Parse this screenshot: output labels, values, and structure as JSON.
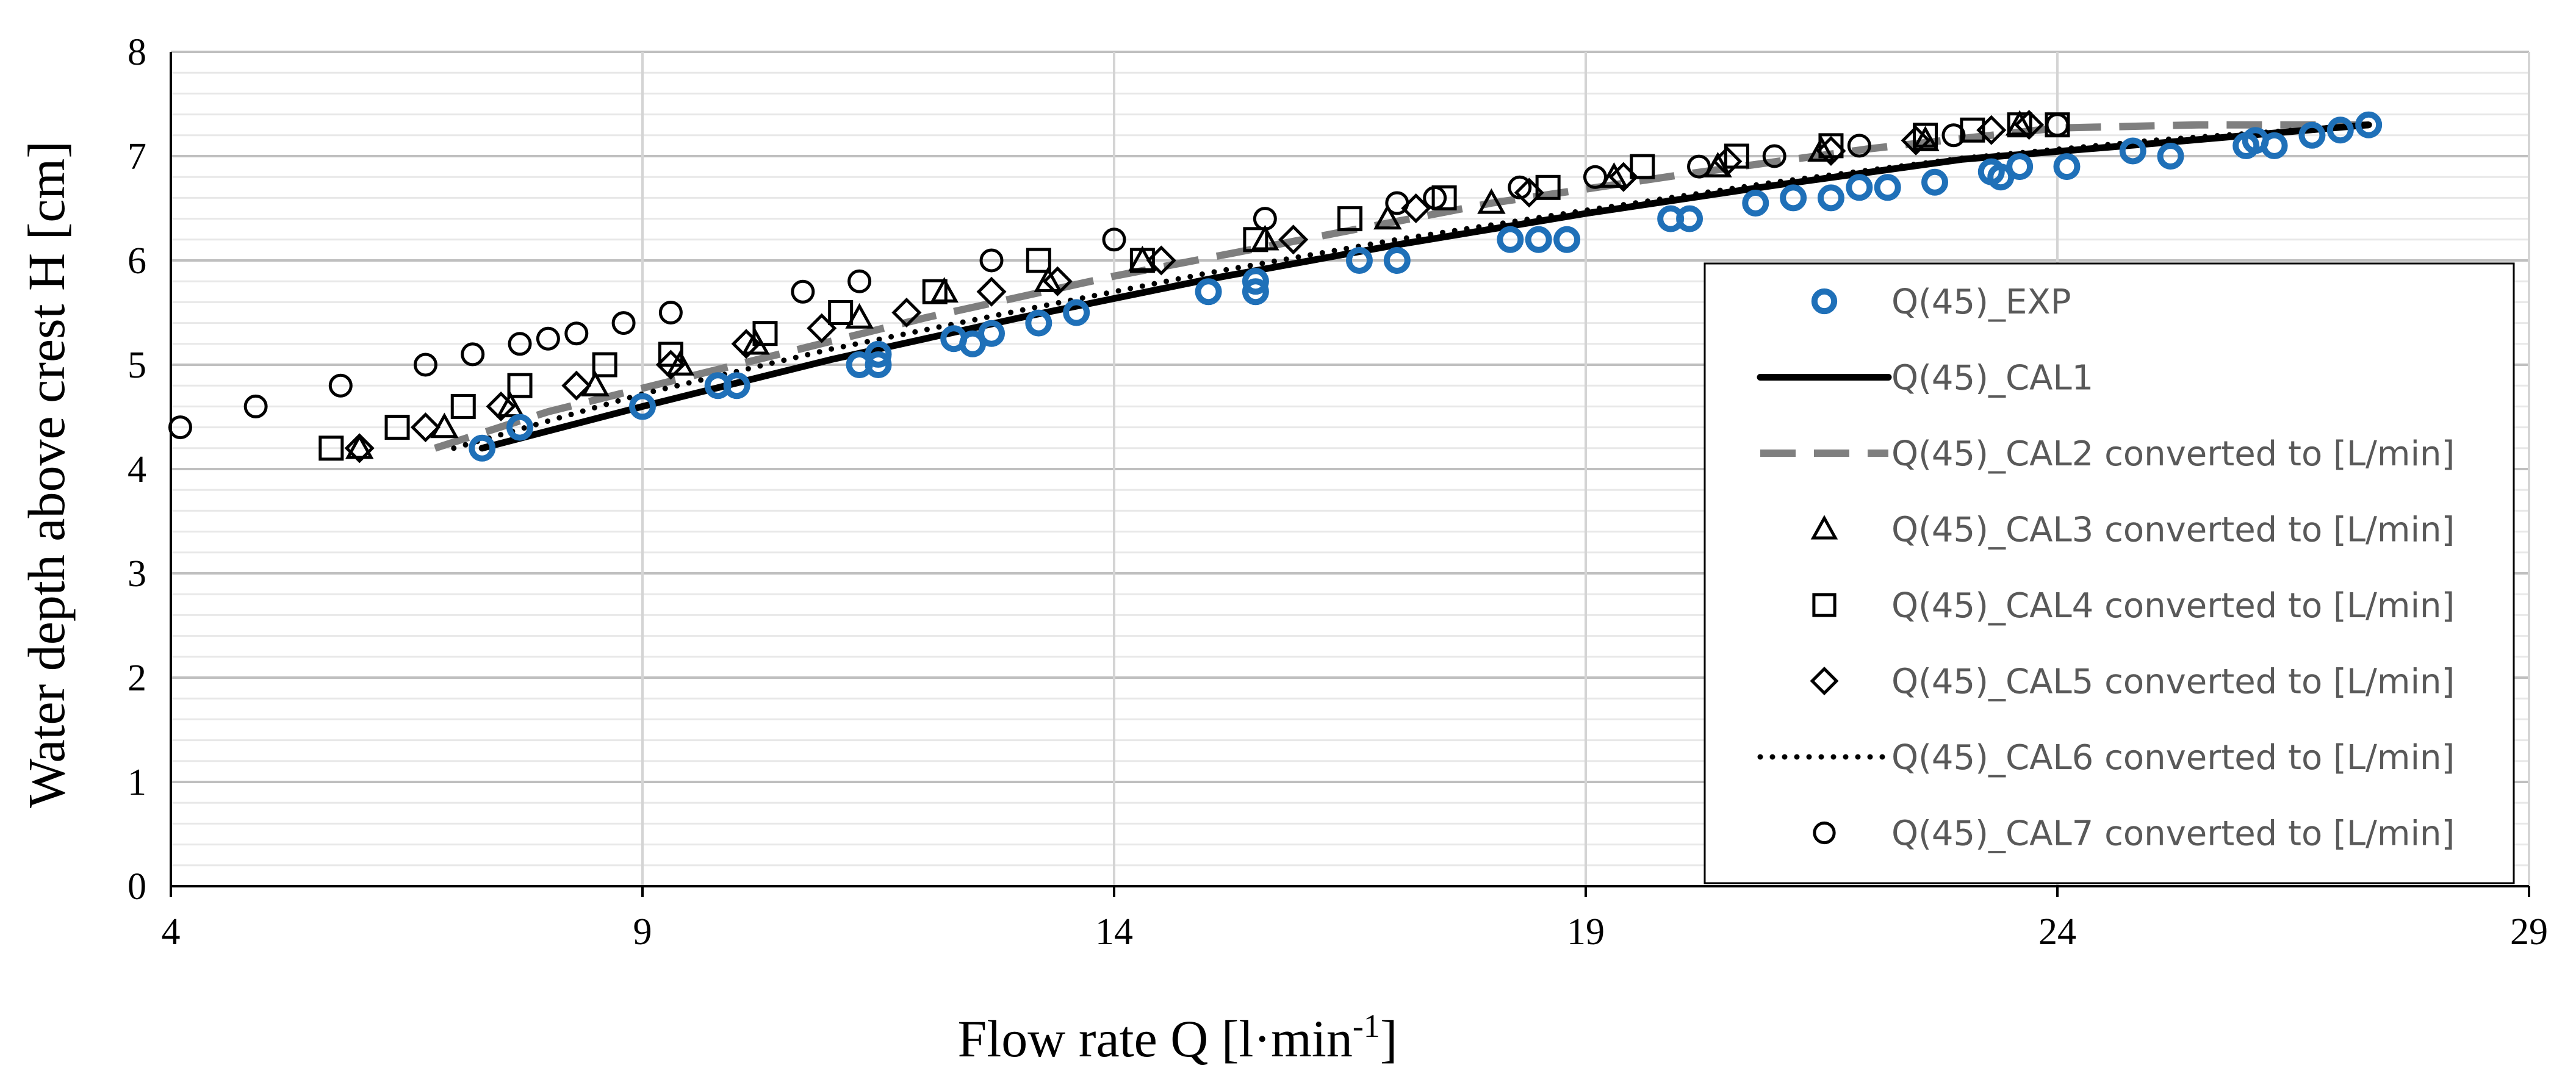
{
  "chart_data": {
    "type": "scatter",
    "xlabel": "Flow rate Q [l·min",
    "xlabel_sup": "-1",
    "xlabel_close": "]",
    "ylabel": "Water depth above crest H [cm]",
    "xlim": [
      4,
      29
    ],
    "ylim": [
      0,
      8
    ],
    "xticks": [
      "4",
      "9",
      "14",
      "19",
      "24",
      "29"
    ],
    "yticks": [
      "0",
      "1",
      "2",
      "3",
      "4",
      "5",
      "6",
      "7",
      "8"
    ],
    "grid": true,
    "legend_position": "right",
    "colors": {
      "exp": "#1f70b8",
      "black": "#000000",
      "gray": "#7f7f7f",
      "grid_major": "#bfbfbf",
      "grid_minor": "#e8e8e8"
    },
    "series": [
      {
        "name": "Q(45)_EXP",
        "style": "circle-blue",
        "x": [
          7.3,
          7.7,
          9.0,
          9.8,
          10.0,
          11.3,
          11.5,
          11.5,
          12.3,
          12.5,
          12.7,
          13.2,
          13.6,
          15.0,
          15.5,
          15.5,
          16.6,
          17.0,
          18.2,
          18.5,
          18.8,
          19.9,
          20.1,
          20.8,
          21.2,
          21.6,
          21.9,
          22.2,
          22.7,
          23.3,
          23.4,
          23.6,
          24.1,
          24.8,
          25.2,
          26.0,
          26.1,
          26.3,
          26.7,
          27.0,
          27.3
        ],
        "y": [
          4.2,
          4.4,
          4.6,
          4.8,
          4.8,
          5.0,
          5.0,
          5.1,
          5.25,
          5.2,
          5.3,
          5.4,
          5.5,
          5.7,
          5.7,
          5.8,
          6.0,
          6.0,
          6.2,
          6.2,
          6.2,
          6.4,
          6.4,
          6.55,
          6.6,
          6.6,
          6.7,
          6.7,
          6.75,
          6.85,
          6.8,
          6.9,
          6.9,
          7.05,
          7.0,
          7.1,
          7.15,
          7.1,
          7.2,
          7.25,
          7.3
        ]
      },
      {
        "name": "Q(45)_CAL1",
        "style": "solid-black",
        "x": [
          7.3,
          9.0,
          11.0,
          13.0,
          15.0,
          17.0,
          19.0,
          21.0,
          23.0,
          25.0,
          27.3
        ],
        "y": [
          4.2,
          4.6,
          5.05,
          5.45,
          5.82,
          6.15,
          6.45,
          6.72,
          6.97,
          7.12,
          7.3
        ]
      },
      {
        "name": "Q(45)_CAL2 converted to [L/min]",
        "style": "dashed-gray",
        "x": [
          6.8,
          8.0,
          10.0,
          12.0,
          14.0,
          16.0,
          18.0,
          20.0,
          22.0,
          24.0,
          25.5,
          27.3
        ],
        "y": [
          4.2,
          4.55,
          5.0,
          5.45,
          5.85,
          6.2,
          6.55,
          6.82,
          7.07,
          7.27,
          7.3,
          7.3
        ]
      },
      {
        "name": "Q(45)_CAL3 converted to [L/min]",
        "style": "triangle-black",
        "x": [
          6.0,
          6.9,
          7.6,
          8.5,
          9.4,
          10.2,
          11.3,
          12.2,
          13.3,
          14.3,
          15.6,
          16.9,
          18.0,
          19.3,
          20.4,
          21.5,
          22.6,
          23.6
        ],
        "y": [
          4.2,
          4.4,
          4.6,
          4.8,
          5.0,
          5.2,
          5.45,
          5.7,
          5.8,
          6.0,
          6.2,
          6.4,
          6.55,
          6.8,
          6.9,
          7.05,
          7.15,
          7.3
        ]
      },
      {
        "name": "Q(45)_CAL4 converted to [L/min]",
        "style": "square-black",
        "x": [
          5.7,
          6.4,
          7.1,
          7.7,
          8.6,
          9.3,
          10.3,
          11.1,
          12.1,
          13.2,
          14.3,
          15.5,
          16.5,
          17.5,
          18.6,
          19.6,
          20.6,
          21.6,
          22.6,
          23.1,
          23.6,
          24.0
        ],
        "y": [
          4.2,
          4.4,
          4.6,
          4.8,
          5.0,
          5.1,
          5.3,
          5.5,
          5.7,
          6.0,
          6.0,
          6.2,
          6.4,
          6.6,
          6.7,
          6.9,
          7.0,
          7.1,
          7.2,
          7.25,
          7.3,
          7.3
        ]
      },
      {
        "name": "Q(45)_CAL5 converted to [L/min]",
        "style": "diamond-black",
        "x": [
          6.0,
          6.7,
          7.5,
          8.3,
          9.3,
          10.1,
          10.9,
          11.8,
          12.7,
          13.4,
          14.5,
          15.9,
          17.2,
          18.4,
          19.4,
          20.5,
          21.6,
          22.5,
          23.3,
          23.7
        ],
        "y": [
          4.2,
          4.4,
          4.6,
          4.8,
          5.0,
          5.2,
          5.35,
          5.5,
          5.7,
          5.8,
          6.0,
          6.2,
          6.5,
          6.65,
          6.8,
          6.95,
          7.05,
          7.15,
          7.25,
          7.3
        ]
      },
      {
        "name": "Q(45)_CAL6 converted to [L/min]",
        "style": "dotted-black",
        "x": [
          7.0,
          9.0,
          11.0,
          13.0,
          15.0,
          17.0,
          19.0,
          21.0,
          23.0,
          25.0,
          27.3
        ],
        "y": [
          4.2,
          4.72,
          5.15,
          5.52,
          5.88,
          6.2,
          6.48,
          6.75,
          6.98,
          7.15,
          7.3
        ]
      },
      {
        "name": "Q(45)_CAL7 converted to [L/min]",
        "style": "circle-black",
        "x": [
          4.1,
          4.9,
          5.8,
          6.7,
          7.2,
          7.7,
          8.0,
          8.3,
          8.8,
          9.3,
          10.7,
          11.3,
          12.7,
          14.0,
          15.6,
          17.0,
          17.4,
          18.3,
          19.1,
          20.2,
          21.0,
          21.9,
          22.9,
          24.0
        ],
        "y": [
          4.4,
          4.6,
          4.8,
          5.0,
          5.1,
          5.2,
          5.25,
          5.3,
          5.4,
          5.5,
          5.7,
          5.8,
          6.0,
          6.2,
          6.4,
          6.55,
          6.6,
          6.7,
          6.8,
          6.9,
          7.0,
          7.1,
          7.2,
          7.3
        ]
      }
    ]
  }
}
